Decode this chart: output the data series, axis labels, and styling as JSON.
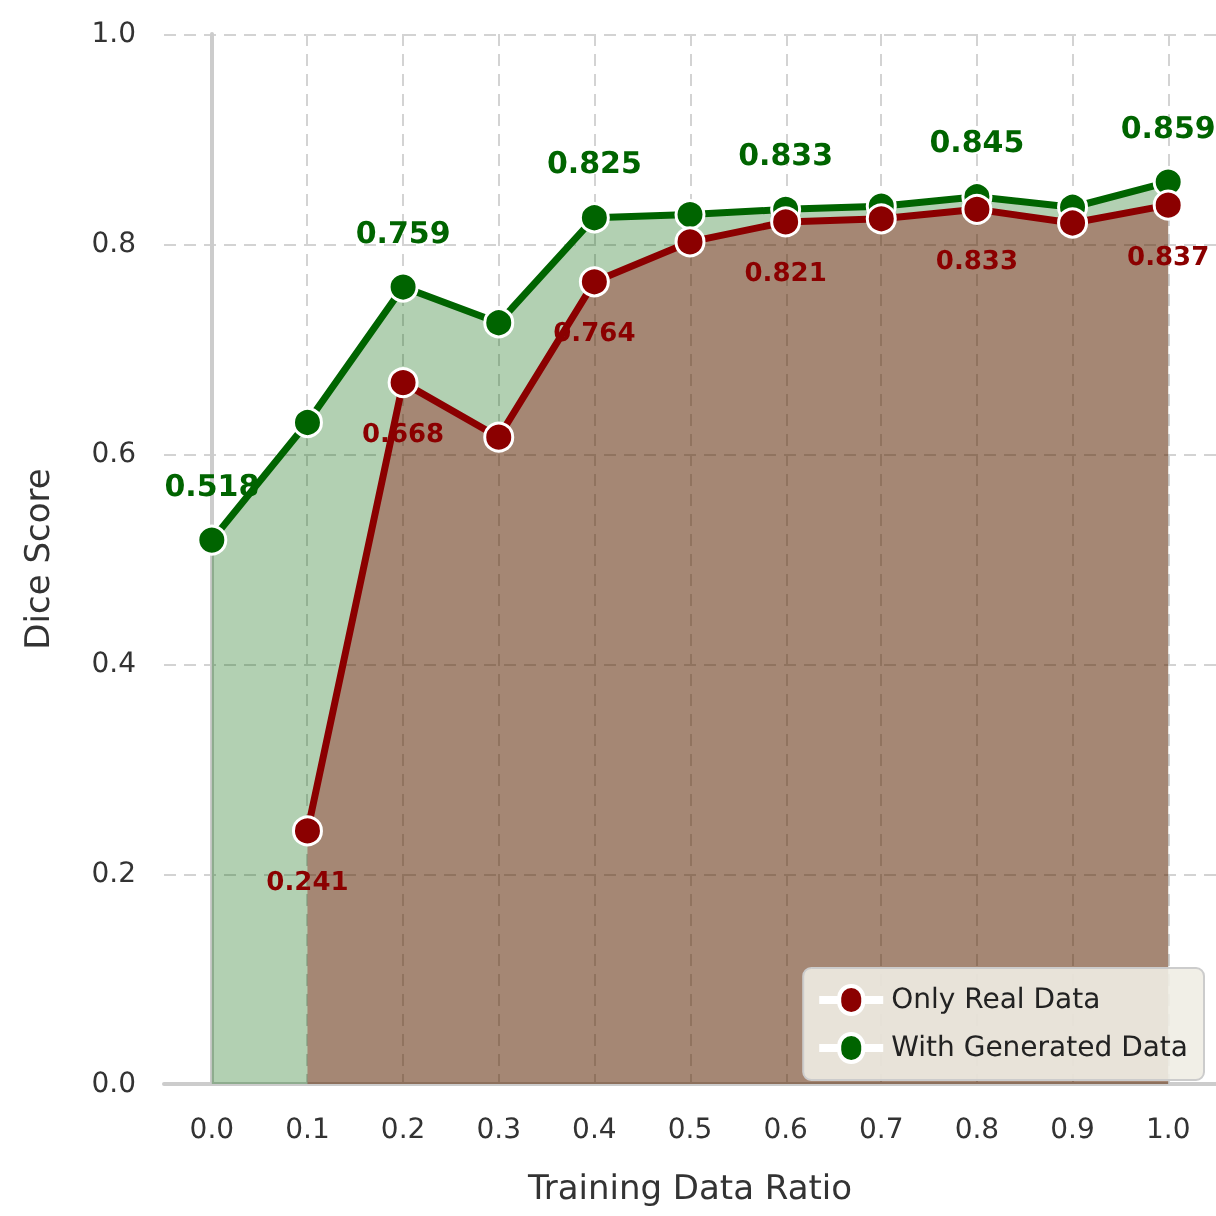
{
  "chart_data": {
    "type": "area",
    "xlabel": "Training Data Ratio",
    "ylabel": "Dice Score",
    "xlim": [
      -0.05,
      1.05
    ],
    "xticks": [
      {
        "value": 0,
        "label": "0.0"
      },
      {
        "value": 0.1,
        "label": "0.1"
      },
      {
        "value": 0.2,
        "label": "0.2"
      },
      {
        "value": 0.3,
        "label": "0.3"
      },
      {
        "value": 0.4,
        "label": "0.4"
      },
      {
        "value": 0.5,
        "label": "0.5"
      },
      {
        "value": 0.6,
        "label": "0.6"
      },
      {
        "value": 0.7,
        "label": "0.7"
      },
      {
        "value": 0.8,
        "label": "0.8"
      },
      {
        "value": 0.9,
        "label": "0.9"
      },
      {
        "value": 1,
        "label": "1.0"
      }
    ],
    "ylim": [
      0,
      1
    ],
    "yticks": [
      {
        "value": 0,
        "label": "0.0"
      },
      {
        "value": 0.2,
        "label": "0.2"
      },
      {
        "value": 0.4,
        "label": "0.4"
      },
      {
        "value": 0.6,
        "label": "0.6"
      },
      {
        "value": 0.8,
        "label": "0.8"
      },
      {
        "value": 1,
        "label": "1.0"
      }
    ],
    "grid": true,
    "legend": "bottom right",
    "marker": "circle",
    "line_style": "solid",
    "series": [
      {
        "name": "With Generated Data",
        "color": "#006400",
        "x": [
          0,
          0.1,
          0.2,
          0.3,
          0.4,
          0.5,
          0.6,
          0.7,
          0.8,
          0.9,
          1.0
        ],
        "values": [
          0.518,
          0.63,
          0.759,
          0.725,
          0.825,
          0.828,
          0.833,
          0.836,
          0.845,
          0.835,
          0.859
        ],
        "value_labels": [
          "0.518",
          null,
          "0.759",
          null,
          "0.825",
          null,
          "0.833",
          null,
          "0.845",
          null,
          "0.859"
        ]
      },
      {
        "name": "Only Real Data",
        "color": "#8b0000",
        "x": [
          0.1,
          0.2,
          0.3,
          0.4,
          0.5,
          0.6,
          0.7,
          0.8,
          0.9,
          1.0
        ],
        "values": [
          0.241,
          0.668,
          0.616,
          0.764,
          0.802,
          0.821,
          0.824,
          0.833,
          0.82,
          0.837
        ],
        "value_labels": [
          "0.241",
          "0.668",
          null,
          "0.764",
          null,
          "0.821",
          null,
          "0.833",
          null,
          "0.837"
        ]
      }
    ]
  }
}
